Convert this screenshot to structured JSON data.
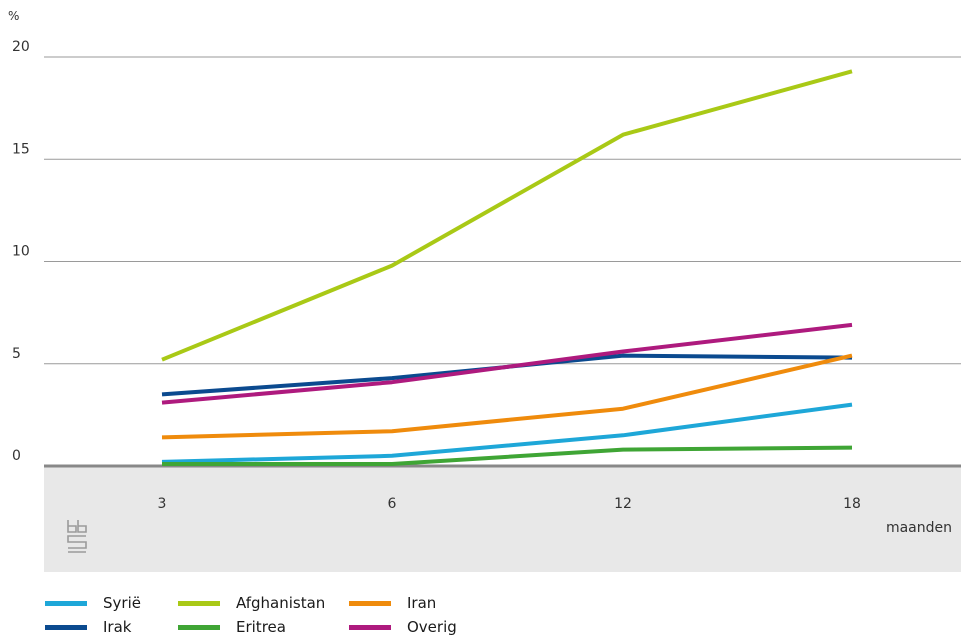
{
  "title": "",
  "chart_data": {
    "type": "line",
    "title": "",
    "xlabel": "maanden",
    "ylabel": "%",
    "categories": [
      "3",
      "6",
      "12",
      "18"
    ],
    "ylim": [
      0,
      20
    ],
    "yticks": [
      0,
      5,
      10,
      15,
      20
    ],
    "grid": true,
    "legend_position": "bottom",
    "series": [
      {
        "name": "Syrië",
        "color": "#1ea7d8",
        "values": [
          0.2,
          0.5,
          1.5,
          3.0
        ]
      },
      {
        "name": "Irak",
        "color": "#0b4a8f",
        "values": [
          3.5,
          4.3,
          5.4,
          5.3
        ]
      },
      {
        "name": "Afghanistan",
        "color": "#a9c916",
        "values": [
          5.2,
          9.8,
          16.2,
          19.3
        ]
      },
      {
        "name": "Eritrea",
        "color": "#3fa535",
        "values": [
          0.1,
          0.1,
          0.8,
          0.9
        ]
      },
      {
        "name": "Iran",
        "color": "#ef8b0c",
        "values": [
          1.4,
          1.7,
          2.8,
          5.4
        ]
      },
      {
        "name": "Overig",
        "color": "#ae1a7e",
        "values": [
          3.1,
          4.1,
          5.6,
          6.9
        ]
      }
    ]
  },
  "legend": [
    {
      "name": "Syrië",
      "color": "#1ea7d8"
    },
    {
      "name": "Afghanistan",
      "color": "#a9c916"
    },
    {
      "name": "Iran",
      "color": "#ef8b0c"
    },
    {
      "name": "Irak",
      "color": "#0b4a8f"
    },
    {
      "name": "Eritrea",
      "color": "#3fa535"
    },
    {
      "name": "Overig",
      "color": "#ae1a7e"
    }
  ],
  "logo": {
    "icon": "cbs-logo-icon"
  }
}
